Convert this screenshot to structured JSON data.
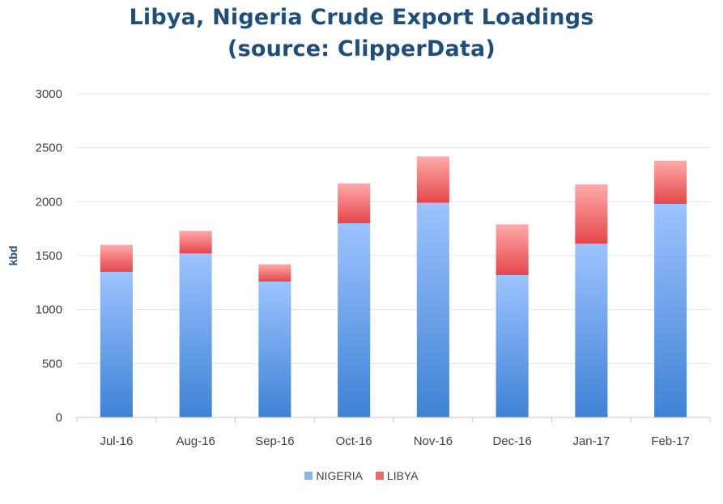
{
  "title_lines": [
    "Libya, Nigeria Crude Export Loadings",
    "(source: ClipperData)"
  ],
  "colors": {
    "nigeria_top": "#9ec3ff",
    "nigeria_bottom": "#3e82d4",
    "libya_top": "#ffaaaa",
    "libya_bottom": "#e4474a",
    "grid": "#d9e4f0",
    "axis": "#c8c8c8",
    "title": "#1f4e79"
  },
  "chart_data": {
    "type": "bar",
    "stacked": true,
    "title": "Libya, Nigeria Crude Export Loadings (source: ClipperData)",
    "xlabel": "",
    "ylabel": "kbd",
    "ylim": [
      0,
      3000
    ],
    "yticks": [
      0,
      500,
      1000,
      1500,
      2000,
      2500,
      3000
    ],
    "grid": true,
    "legend_position": "bottom",
    "categories": [
      "Jul-16",
      "Aug-16",
      "Sep-16",
      "Oct-16",
      "Nov-16",
      "Dec-16",
      "Jan-17",
      "Feb-17"
    ],
    "series": [
      {
        "name": "NIGERIA",
        "values": [
          1350,
          1520,
          1260,
          1800,
          1990,
          1320,
          1610,
          1980
        ]
      },
      {
        "name": "LIBYA",
        "values": [
          250,
          210,
          160,
          370,
          430,
          470,
          550,
          400
        ]
      }
    ]
  }
}
